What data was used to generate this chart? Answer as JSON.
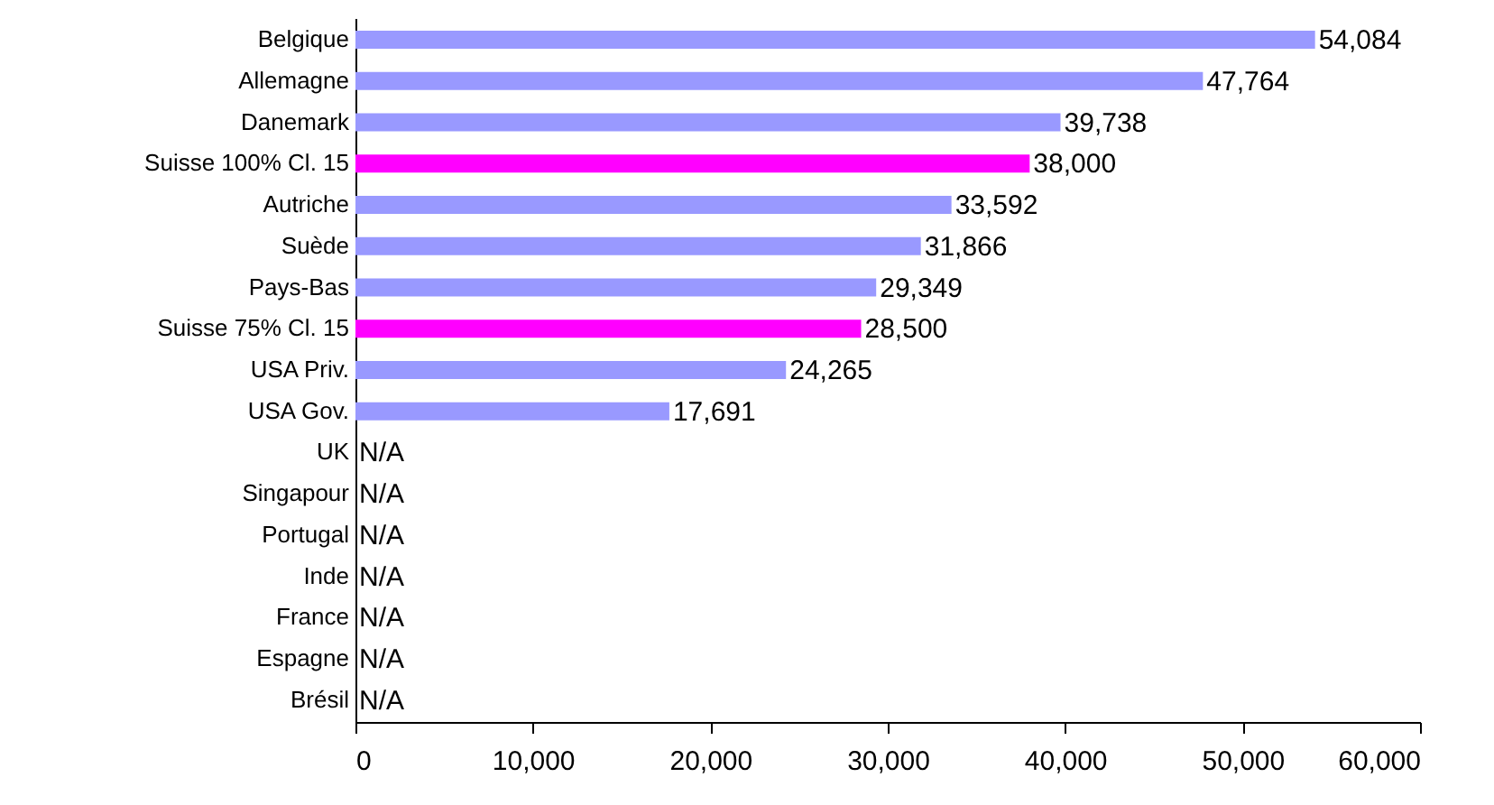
{
  "chart_data": {
    "type": "bar",
    "orientation": "horizontal",
    "categories": [
      "Belgique",
      "Allemagne",
      "Danemark",
      "Suisse 100% Cl. 15",
      "Autriche",
      "Suède",
      "Pays-Bas",
      "Suisse 75% Cl. 15",
      "USA Priv.",
      "USA Gov.",
      "UK",
      "Singapour",
      "Portugal",
      "Inde",
      "France",
      "Espagne",
      "Brésil"
    ],
    "values": [
      54084,
      47764,
      39738,
      38000,
      33592,
      31866,
      29349,
      28500,
      24265,
      17691,
      null,
      null,
      null,
      null,
      null,
      null,
      null
    ],
    "value_labels": [
      "54,084",
      "47,764",
      "39,738",
      "38,000",
      "33,592",
      "31,866",
      "29,349",
      "28,500",
      "24,265",
      "17,691",
      "N/A",
      "N/A",
      "N/A",
      "N/A",
      "N/A",
      "N/A",
      "N/A"
    ],
    "colors": [
      "#9999ff",
      "#9999ff",
      "#9999ff",
      "#ff00ff",
      "#9999ff",
      "#9999ff",
      "#9999ff",
      "#ff00ff",
      "#9999ff",
      "#9999ff",
      "#9999ff",
      "#9999ff",
      "#9999ff",
      "#9999ff",
      "#9999ff",
      "#9999ff",
      "#9999ff"
    ],
    "xlim": [
      0,
      60000
    ],
    "xticks": [
      0,
      {
        "value": 10000,
        "label": "10,000"
      },
      {
        "value": 20000,
        "label": "20,000"
      },
      {
        "value": 30000,
        "label": "30,000"
      },
      {
        "value": 40000,
        "label": "40,000"
      },
      {
        "value": 50000,
        "label": "50,000"
      },
      {
        "value": 60000,
        "label": "60,000"
      }
    ],
    "grid": false
  }
}
